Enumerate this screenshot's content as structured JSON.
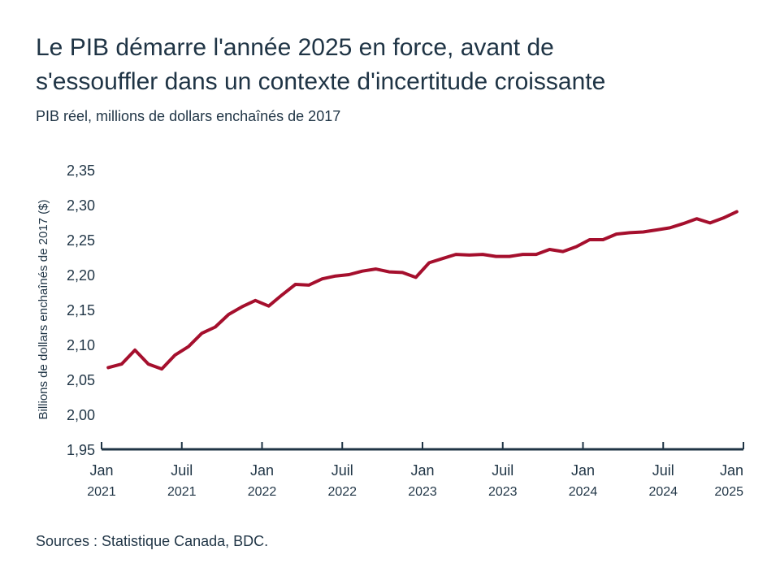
{
  "title_line1": "Le PIB démarre l'année 2025 en force, avant de",
  "title_line2": "s'essouffler dans un contexte d'incertitude croissante",
  "subtitle": "PIB réel, millions de dollars enchaînés de 2017",
  "source": "Sources : Statistique Canada, BDC.",
  "chart_data": {
    "type": "line",
    "ylabel": "Billions de dollars enchaînés de 2017 ($)",
    "xlabel": "",
    "ylim": [
      1.95,
      2.35
    ],
    "yticks": [
      1.95,
      2.0,
      2.05,
      2.1,
      2.15,
      2.2,
      2.25,
      2.3,
      2.35
    ],
    "ytick_labels": [
      "1,95",
      "2,00",
      "2,05",
      "2,10",
      "2,15",
      "2,20",
      "2,25",
      "2,30",
      "2,35"
    ],
    "xtick_labels": [
      [
        "Jan",
        "2021"
      ],
      [
        "Juil",
        "2021"
      ],
      [
        "Jan",
        "2022"
      ],
      [
        "Juil",
        "2022"
      ],
      [
        "Jan",
        "2023"
      ],
      [
        "Juil",
        "2023"
      ],
      [
        "Jan",
        "2024"
      ],
      [
        "Juil",
        "2024"
      ],
      [
        "Jan",
        "2025"
      ]
    ],
    "grid": false,
    "line_color": "#a50f2d",
    "x_start": "2021-01",
    "frequency": "monthly",
    "values": [
      2.067,
      2.072,
      2.092,
      2.072,
      2.065,
      2.085,
      2.097,
      2.116,
      2.125,
      2.143,
      2.154,
      2.163,
      2.155,
      2.171,
      2.186,
      2.185,
      2.194,
      2.198,
      2.2,
      2.205,
      2.208,
      2.204,
      2.203,
      2.196,
      2.217,
      2.223,
      2.229,
      2.228,
      2.229,
      2.226,
      2.226,
      2.229,
      2.229,
      2.236,
      2.233,
      2.24,
      2.25,
      2.25,
      2.258,
      2.26,
      2.261,
      2.264,
      2.267,
      2.273,
      2.28,
      2.274,
      2.281,
      2.29
    ]
  }
}
